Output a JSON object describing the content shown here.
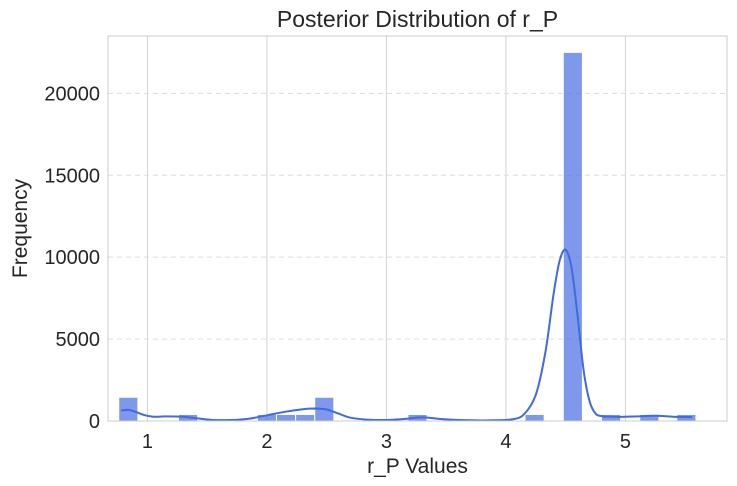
{
  "chart_data": {
    "type": "bar",
    "title": "Posterior Distribution of r_P",
    "xlabel": "r_P Values",
    "ylabel": "Frequency",
    "xlim": [
      0.67,
      5.85
    ],
    "ylim": [
      0,
      23500
    ],
    "xticks": [
      1,
      2,
      3,
      4,
      5
    ],
    "yticks": [
      0,
      5000,
      10000,
      15000,
      20000
    ],
    "grid": true,
    "bar_color": "#4169e1",
    "kde_color": "#4169e1",
    "bins": [
      {
        "x0": 0.76,
        "x1": 0.92,
        "value": 1450
      },
      {
        "x0": 1.26,
        "x1": 1.42,
        "value": 400
      },
      {
        "x0": 1.92,
        "x1": 2.08,
        "value": 400
      },
      {
        "x0": 2.08,
        "x1": 2.24,
        "value": 400
      },
      {
        "x0": 2.24,
        "x1": 2.4,
        "value": 400
      },
      {
        "x0": 2.4,
        "x1": 2.56,
        "value": 1450
      },
      {
        "x0": 3.18,
        "x1": 3.34,
        "value": 400
      },
      {
        "x0": 4.16,
        "x1": 4.32,
        "value": 400
      },
      {
        "x0": 4.48,
        "x1": 4.64,
        "value": 22500
      },
      {
        "x0": 4.8,
        "x1": 4.96,
        "value": 400
      },
      {
        "x0": 5.12,
        "x1": 5.28,
        "value": 400
      },
      {
        "x0": 5.43,
        "x1": 5.59,
        "value": 400
      }
    ],
    "kde": {
      "x": [
        0.78,
        0.84,
        0.9,
        0.97,
        1.05,
        1.15,
        1.3,
        1.42,
        1.55,
        1.7,
        1.85,
        2.0,
        2.15,
        2.3,
        2.4,
        2.5,
        2.6,
        2.7,
        2.85,
        3.0,
        3.15,
        3.3,
        3.5,
        3.7,
        3.9,
        4.05,
        4.15,
        4.25,
        4.33,
        4.4,
        4.45,
        4.5,
        4.55,
        4.6,
        4.65,
        4.7,
        4.75,
        4.8,
        4.85,
        4.95,
        5.1,
        5.25,
        5.4,
        5.56
      ],
      "y": [
        640,
        680,
        560,
        370,
        260,
        280,
        260,
        160,
        60,
        60,
        140,
        350,
        560,
        720,
        760,
        700,
        450,
        200,
        80,
        60,
        120,
        220,
        100,
        40,
        40,
        100,
        400,
        1600,
        4200,
        7800,
        9800,
        10450,
        9300,
        6400,
        3100,
        1200,
        450,
        300,
        270,
        250,
        280,
        320,
        260,
        240
      ]
    }
  }
}
